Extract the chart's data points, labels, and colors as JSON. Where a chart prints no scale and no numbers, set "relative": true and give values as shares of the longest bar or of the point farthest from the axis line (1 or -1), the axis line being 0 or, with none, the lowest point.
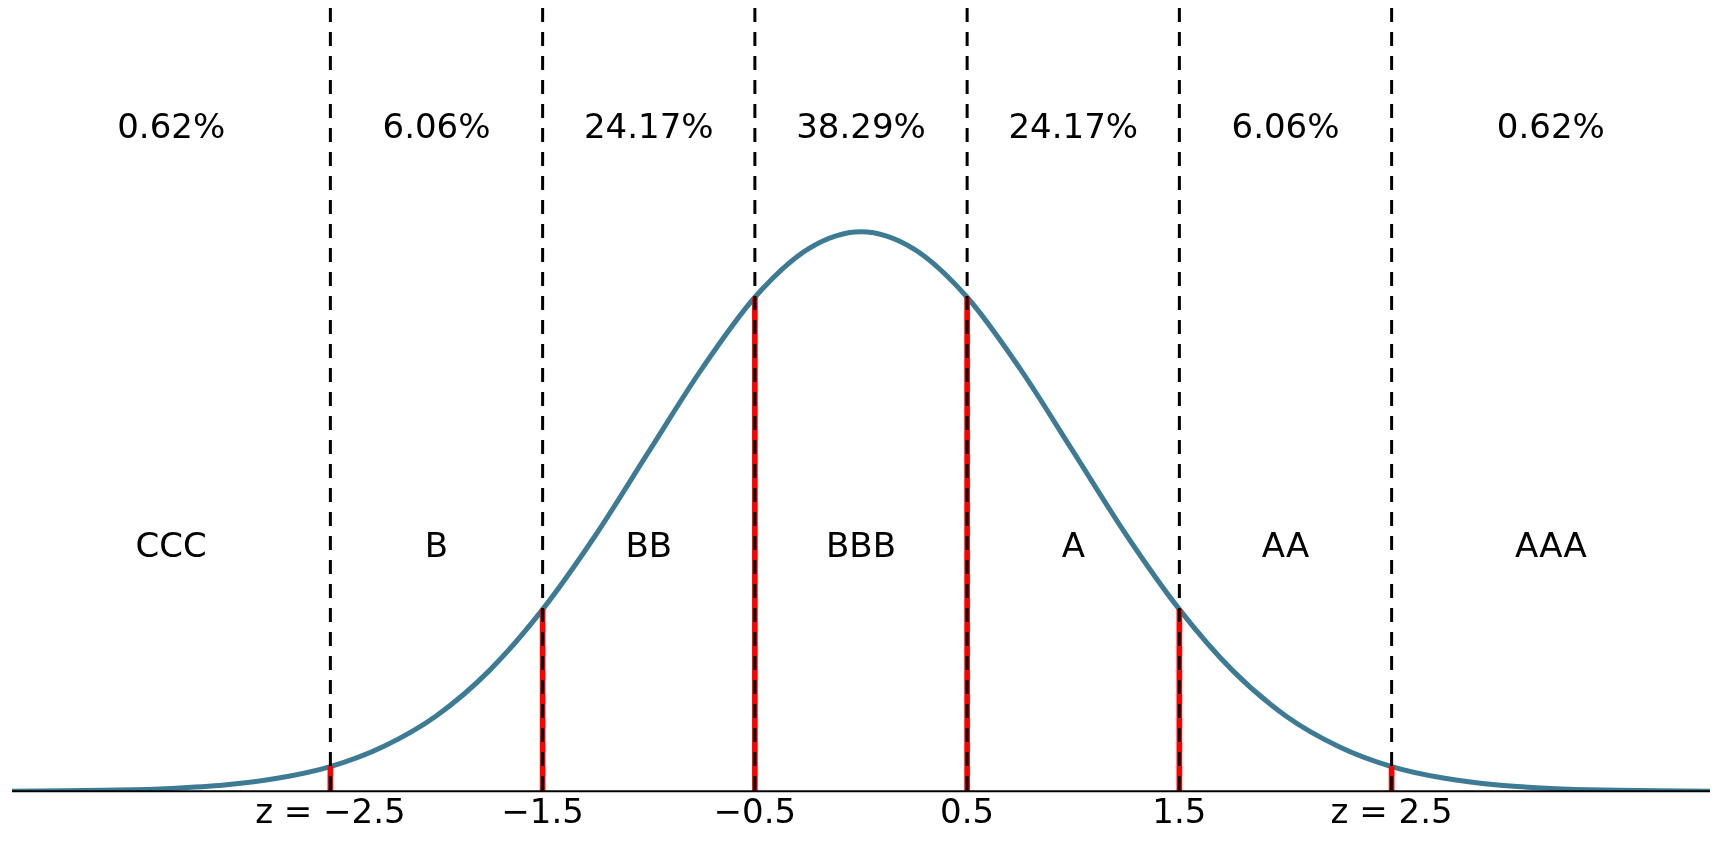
{
  "chart_data": {
    "type": "line",
    "relative": true,
    "tick_labels": "x",
    "xlim": [
      -4,
      4
    ],
    "xticks": [
      {
        "value": -2.5,
        "label": "z = −2.5"
      },
      {
        "value": -1.5,
        "label": "−1.5"
      },
      {
        "value": -0.5,
        "label": "−0.5"
      },
      {
        "value": 0.5,
        "label": "0.5"
      },
      {
        "value": 1.5,
        "label": "1.5"
      },
      {
        "value": 2.5,
        "label": "z = 2.5"
      }
    ],
    "series": [
      {
        "color": "#3d7b94",
        "x": [
          -4,
          -3.75,
          -3.5,
          -3.25,
          -3,
          -2.75,
          -2.5,
          -2.25,
          -2,
          -1.75,
          -1.5,
          -1.25,
          -1,
          -0.75,
          -0.5,
          -0.25,
          0,
          0.25,
          0.5,
          0.75,
          1,
          1.25,
          1.5,
          1.75,
          2,
          2.25,
          2.5,
          2.75,
          3,
          3.25,
          3.5,
          3.75,
          4
        ],
        "values": [
          0.0,
          0.001,
          0.002,
          0.005,
          0.011,
          0.023,
          0.044,
          0.08,
          0.135,
          0.216,
          0.325,
          0.458,
          0.607,
          0.755,
          0.883,
          0.969,
          1,
          0.969,
          0.883,
          0.755,
          0.607,
          0.458,
          0.325,
          0.216,
          0.135,
          0.08,
          0.044,
          0.023,
          0.011,
          0.005,
          0.002,
          0.001,
          0.0
        ]
      },
      {
        "type": "bar",
        "color": "#ff0000",
        "x": [
          -2.5,
          -1.5,
          -0.5,
          0.5,
          1.5,
          2.5
        ],
        "values": [
          0.044,
          0.325,
          0.883,
          0.883,
          0.325,
          0.044
        ]
      }
    ],
    "ref_lines": [
      {
        "axis": "x",
        "value": -2.5,
        "color": "#000000",
        "line_style": "dashed"
      },
      {
        "axis": "x",
        "value": -1.5,
        "color": "#000000",
        "line_style": "dashed"
      },
      {
        "axis": "x",
        "value": -0.5,
        "color": "#000000",
        "line_style": "dashed"
      },
      {
        "axis": "x",
        "value": 0.5,
        "color": "#000000",
        "line_style": "dashed"
      },
      {
        "axis": "x",
        "value": 1.5,
        "color": "#000000",
        "line_style": "dashed"
      },
      {
        "axis": "x",
        "value": 2.5,
        "color": "#000000",
        "line_style": "dashed"
      }
    ],
    "annotations": [
      "0.62%",
      "6.06%",
      "24.17%",
      "38.29%",
      "24.17%",
      "6.06%",
      "0.62%",
      "CCC",
      "B",
      "BB",
      "BBB",
      "A",
      "AA",
      "AAA"
    ]
  }
}
